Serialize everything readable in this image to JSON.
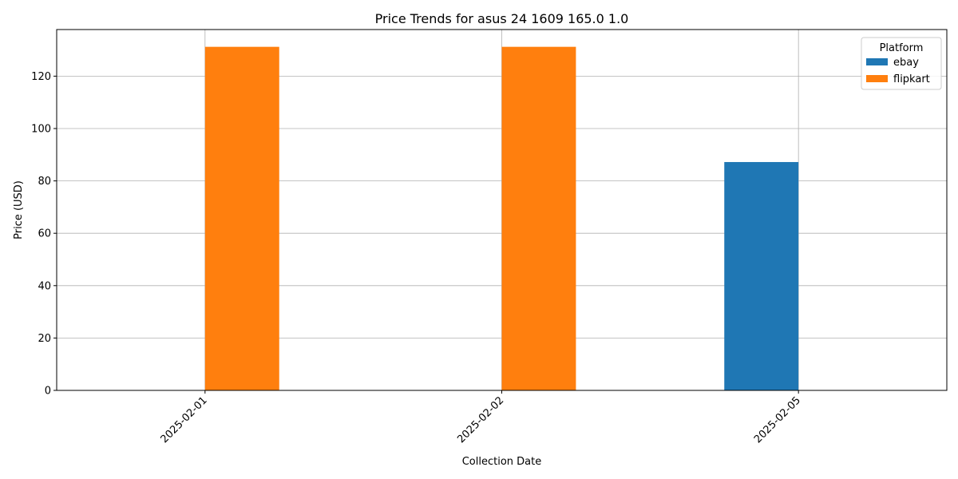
{
  "chart_data": {
    "type": "bar",
    "title": "Price Trends for asus 24 1609 165.0 1.0",
    "xlabel": "Collection Date",
    "ylabel": "Price (USD)",
    "categories": [
      "2025-02-01",
      "2025-02-02",
      "2025-02-05"
    ],
    "series": [
      {
        "name": "ebay",
        "color": "#1f77b4",
        "values": [
          null,
          null,
          87.2
        ]
      },
      {
        "name": "flipkart",
        "color": "#ff7f0e",
        "values": [
          131.2,
          131.2,
          null
        ]
      }
    ],
    "ylim": [
      0,
      137.8
    ],
    "yticks": [
      0,
      20,
      40,
      60,
      80,
      100,
      120
    ],
    "grid": true,
    "legend": {
      "title": "Platform",
      "position": "top-right"
    }
  }
}
